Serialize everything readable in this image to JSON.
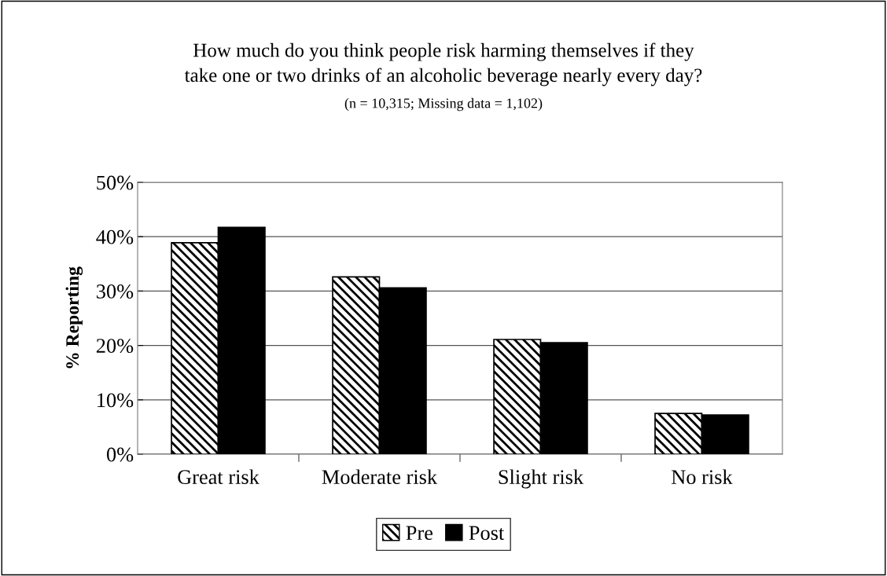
{
  "chart_data": {
    "type": "bar",
    "title": "How much do you think people risk harming themselves if they\ntake one or two drinks of an alcoholic beverage nearly every day?",
    "subtitle": "(n = 10,315; Missing data = 1,102)",
    "ylabel": "% Reporting",
    "categories": [
      "Great risk",
      "Moderate risk",
      "Slight risk",
      "No risk"
    ],
    "series": [
      {
        "name": "Pre",
        "color": "#000000",
        "values": [
          38.9,
          32.6,
          21.1,
          7.5
        ]
      },
      {
        "name": "Post",
        "color": "#000000",
        "values": [
          41.7,
          30.6,
          20.5,
          7.2
        ]
      }
    ],
    "ylim": [
      0,
      50
    ],
    "yticks": [
      {
        "value": 0,
        "label": "0%"
      },
      {
        "value": 10,
        "label": "10%"
      },
      {
        "value": 20,
        "label": "20%"
      },
      {
        "value": 30,
        "label": "30%"
      },
      {
        "value": 40,
        "label": "40%"
      },
      {
        "value": 50,
        "label": "50%"
      }
    ],
    "grid": "y",
    "legend": "bottom"
  }
}
